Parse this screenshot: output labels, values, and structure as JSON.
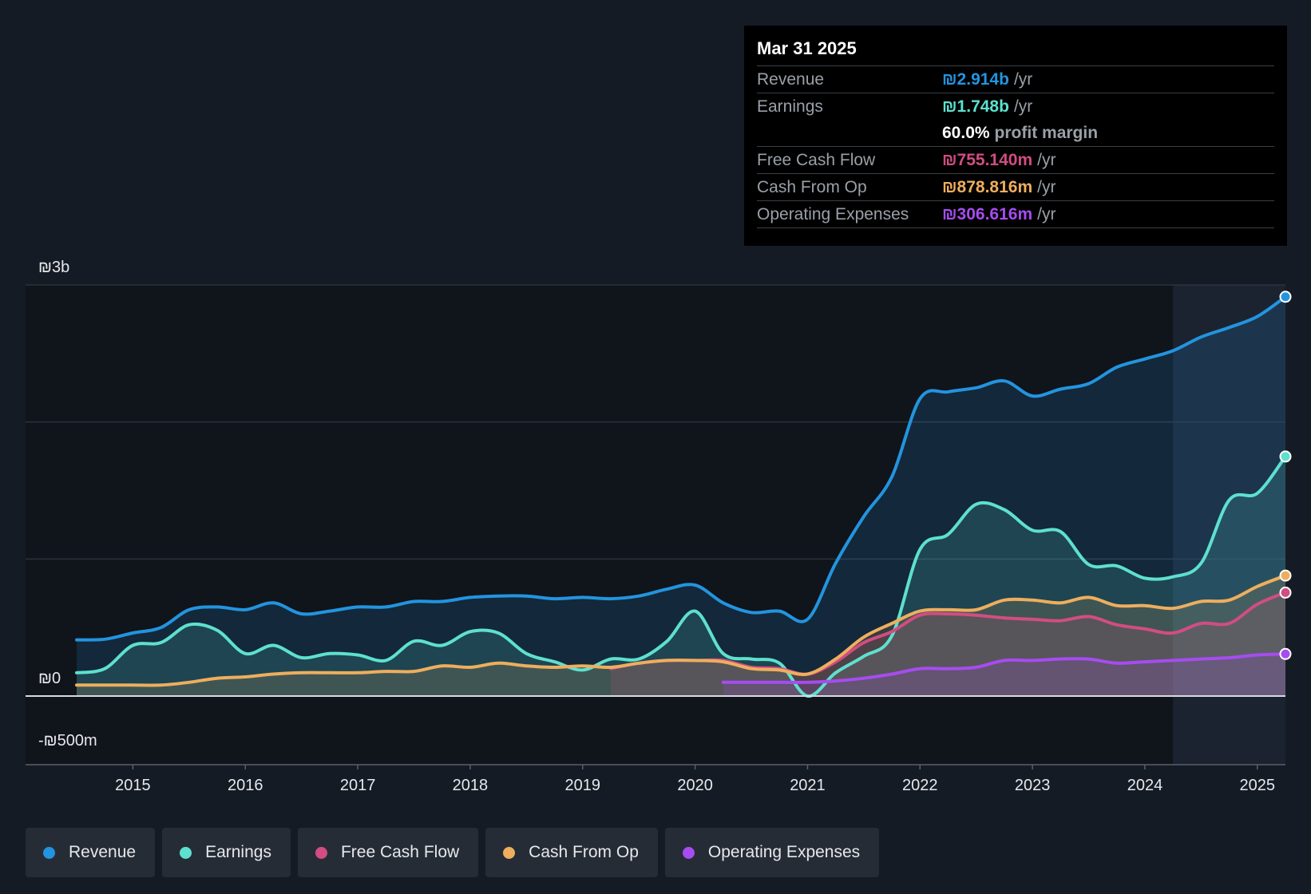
{
  "chart_data": {
    "type": "area",
    "currency": "₪",
    "y_labels": {
      "top": "₪3b",
      "zero": "₪0",
      "bottom": "-₪500m"
    },
    "ylim": [
      -0.5,
      3.0
    ],
    "xlim": [
      2014.5,
      2025.25
    ],
    "x_ticks": [
      "2015",
      "2016",
      "2017",
      "2018",
      "2019",
      "2020",
      "2021",
      "2022",
      "2023",
      "2024",
      "2025"
    ],
    "highlight_start": 2024.25,
    "series": [
      {
        "name": "Revenue",
        "color": "#2394df",
        "start": 2014.5,
        "points": [
          [
            2014.5,
            0.41
          ],
          [
            2014.75,
            0.415
          ],
          [
            2015,
            0.46
          ],
          [
            2015.25,
            0.5
          ],
          [
            2015.5,
            0.63
          ],
          [
            2015.75,
            0.65
          ],
          [
            2016,
            0.63
          ],
          [
            2016.25,
            0.68
          ],
          [
            2016.5,
            0.6
          ],
          [
            2016.75,
            0.62
          ],
          [
            2017,
            0.65
          ],
          [
            2017.25,
            0.65
          ],
          [
            2017.5,
            0.69
          ],
          [
            2017.75,
            0.69
          ],
          [
            2018,
            0.72
          ],
          [
            2018.25,
            0.73
          ],
          [
            2018.5,
            0.73
          ],
          [
            2018.75,
            0.71
          ],
          [
            2019,
            0.72
          ],
          [
            2019.25,
            0.71
          ],
          [
            2019.5,
            0.73
          ],
          [
            2019.75,
            0.78
          ],
          [
            2020,
            0.81
          ],
          [
            2020.25,
            0.68
          ],
          [
            2020.5,
            0.61
          ],
          [
            2020.75,
            0.62
          ],
          [
            2021,
            0.56
          ],
          [
            2021.25,
            0.97
          ],
          [
            2021.5,
            1.31
          ],
          [
            2021.75,
            1.6
          ],
          [
            2022,
            2.17
          ],
          [
            2022.25,
            2.22
          ],
          [
            2022.5,
            2.25
          ],
          [
            2022.75,
            2.3
          ],
          [
            2023,
            2.19
          ],
          [
            2023.25,
            2.24
          ],
          [
            2023.5,
            2.28
          ],
          [
            2023.75,
            2.4
          ],
          [
            2024,
            2.46
          ],
          [
            2024.25,
            2.52
          ],
          [
            2024.5,
            2.62
          ],
          [
            2024.75,
            2.69
          ],
          [
            2025,
            2.77
          ],
          [
            2025.25,
            2.914
          ]
        ]
      },
      {
        "name": "Earnings",
        "color": "#5ee0cf",
        "start": 2014.5,
        "points": [
          [
            2014.5,
            0.17
          ],
          [
            2014.75,
            0.2
          ],
          [
            2015,
            0.37
          ],
          [
            2015.25,
            0.39
          ],
          [
            2015.5,
            0.52
          ],
          [
            2015.75,
            0.48
          ],
          [
            2016,
            0.31
          ],
          [
            2016.25,
            0.37
          ],
          [
            2016.5,
            0.28
          ],
          [
            2016.75,
            0.31
          ],
          [
            2017,
            0.3
          ],
          [
            2017.25,
            0.26
          ],
          [
            2017.5,
            0.4
          ],
          [
            2017.75,
            0.37
          ],
          [
            2018,
            0.47
          ],
          [
            2018.25,
            0.46
          ],
          [
            2018.5,
            0.31
          ],
          [
            2018.75,
            0.25
          ],
          [
            2019,
            0.19
          ],
          [
            2019.25,
            0.27
          ],
          [
            2019.5,
            0.27
          ],
          [
            2019.75,
            0.4
          ],
          [
            2020,
            0.62
          ],
          [
            2020.25,
            0.31
          ],
          [
            2020.5,
            0.27
          ],
          [
            2020.75,
            0.24
          ],
          [
            2021,
            0.0
          ],
          [
            2021.25,
            0.17
          ],
          [
            2021.5,
            0.29
          ],
          [
            2021.75,
            0.44
          ],
          [
            2022,
            1.07
          ],
          [
            2022.25,
            1.18
          ],
          [
            2022.5,
            1.4
          ],
          [
            2022.75,
            1.36
          ],
          [
            2023,
            1.21
          ],
          [
            2023.25,
            1.2
          ],
          [
            2023.5,
            0.96
          ],
          [
            2023.75,
            0.95
          ],
          [
            2024,
            0.86
          ],
          [
            2024.25,
            0.87
          ],
          [
            2024.5,
            0.97
          ],
          [
            2024.75,
            1.43
          ],
          [
            2025,
            1.48
          ],
          [
            2025.25,
            1.748
          ]
        ]
      },
      {
        "name": "Free Cash Flow",
        "color": "#d14d82",
        "start": 2019.25,
        "points": [
          [
            2019.25,
            0.2
          ],
          [
            2019.5,
            0.24
          ],
          [
            2019.75,
            0.26
          ],
          [
            2020,
            0.26
          ],
          [
            2020.25,
            0.26
          ],
          [
            2020.5,
            0.21
          ],
          [
            2020.75,
            0.2
          ],
          [
            2021,
            0.16
          ],
          [
            2021.25,
            0.25
          ],
          [
            2021.5,
            0.39
          ],
          [
            2021.75,
            0.47
          ],
          [
            2022,
            0.59
          ],
          [
            2022.25,
            0.6
          ],
          [
            2022.5,
            0.59
          ],
          [
            2022.75,
            0.57
          ],
          [
            2023,
            0.56
          ],
          [
            2023.25,
            0.55
          ],
          [
            2023.5,
            0.58
          ],
          [
            2023.75,
            0.52
          ],
          [
            2024,
            0.49
          ],
          [
            2024.25,
            0.46
          ],
          [
            2024.5,
            0.53
          ],
          [
            2024.75,
            0.53
          ],
          [
            2025,
            0.67
          ],
          [
            2025.25,
            0.755
          ]
        ]
      },
      {
        "name": "Cash From Op",
        "color": "#eeae5e",
        "start": 2014.5,
        "points": [
          [
            2014.5,
            0.08
          ],
          [
            2014.75,
            0.08
          ],
          [
            2015,
            0.08
          ],
          [
            2015.25,
            0.08
          ],
          [
            2015.5,
            0.1
          ],
          [
            2015.75,
            0.13
          ],
          [
            2016,
            0.14
          ],
          [
            2016.25,
            0.16
          ],
          [
            2016.5,
            0.17
          ],
          [
            2016.75,
            0.17
          ],
          [
            2017,
            0.17
          ],
          [
            2017.25,
            0.18
          ],
          [
            2017.5,
            0.18
          ],
          [
            2017.75,
            0.22
          ],
          [
            2018,
            0.21
          ],
          [
            2018.25,
            0.24
          ],
          [
            2018.5,
            0.22
          ],
          [
            2018.75,
            0.21
          ],
          [
            2019,
            0.22
          ],
          [
            2019.25,
            0.21
          ],
          [
            2019.5,
            0.24
          ],
          [
            2019.75,
            0.26
          ],
          [
            2020,
            0.26
          ],
          [
            2020.25,
            0.25
          ],
          [
            2020.5,
            0.2
          ],
          [
            2020.75,
            0.19
          ],
          [
            2021,
            0.16
          ],
          [
            2021.25,
            0.27
          ],
          [
            2021.5,
            0.43
          ],
          [
            2021.75,
            0.53
          ],
          [
            2022,
            0.62
          ],
          [
            2022.25,
            0.63
          ],
          [
            2022.5,
            0.63
          ],
          [
            2022.75,
            0.7
          ],
          [
            2023,
            0.7
          ],
          [
            2023.25,
            0.68
          ],
          [
            2023.5,
            0.72
          ],
          [
            2023.75,
            0.66
          ],
          [
            2024,
            0.66
          ],
          [
            2024.25,
            0.64
          ],
          [
            2024.5,
            0.69
          ],
          [
            2024.75,
            0.7
          ],
          [
            2025,
            0.8
          ],
          [
            2025.25,
            0.879
          ]
        ]
      },
      {
        "name": "Operating Expenses",
        "color": "#a64cf0",
        "start": 2020.25,
        "points": [
          [
            2020.25,
            0.1
          ],
          [
            2020.5,
            0.1
          ],
          [
            2020.75,
            0.1
          ],
          [
            2021,
            0.1
          ],
          [
            2021.25,
            0.11
          ],
          [
            2021.5,
            0.13
          ],
          [
            2021.75,
            0.16
          ],
          [
            2022,
            0.2
          ],
          [
            2022.25,
            0.2
          ],
          [
            2022.5,
            0.21
          ],
          [
            2022.75,
            0.26
          ],
          [
            2023,
            0.26
          ],
          [
            2023.25,
            0.27
          ],
          [
            2023.5,
            0.27
          ],
          [
            2023.75,
            0.24
          ],
          [
            2024,
            0.25
          ],
          [
            2024.25,
            0.26
          ],
          [
            2024.5,
            0.27
          ],
          [
            2024.75,
            0.28
          ],
          [
            2025,
            0.3
          ],
          [
            2025.25,
            0.307
          ]
        ]
      }
    ]
  },
  "tooltip": {
    "date": "Mar 31 2025",
    "revenue": {
      "label": "Revenue",
      "value": "₪2.914b",
      "unit": "/yr"
    },
    "earnings": {
      "label": "Earnings",
      "value": "₪1.748b",
      "unit": "/yr"
    },
    "margin": {
      "value": "60.0%",
      "text": "profit margin"
    },
    "fcf": {
      "label": "Free Cash Flow",
      "value": "₪755.140m",
      "unit": "/yr"
    },
    "cfo": {
      "label": "Cash From Op",
      "value": "₪878.816m",
      "unit": "/yr"
    },
    "opex": {
      "label": "Operating Expenses",
      "value": "₪306.616m",
      "unit": "/yr"
    }
  },
  "legend": [
    {
      "label": "Revenue",
      "color": "#2394df"
    },
    {
      "label": "Earnings",
      "color": "#5ee0cf"
    },
    {
      "label": "Free Cash Flow",
      "color": "#d14d82"
    },
    {
      "label": "Cash From Op",
      "color": "#eeae5e"
    },
    {
      "label": "Operating Expenses",
      "color": "#a64cf0"
    }
  ]
}
